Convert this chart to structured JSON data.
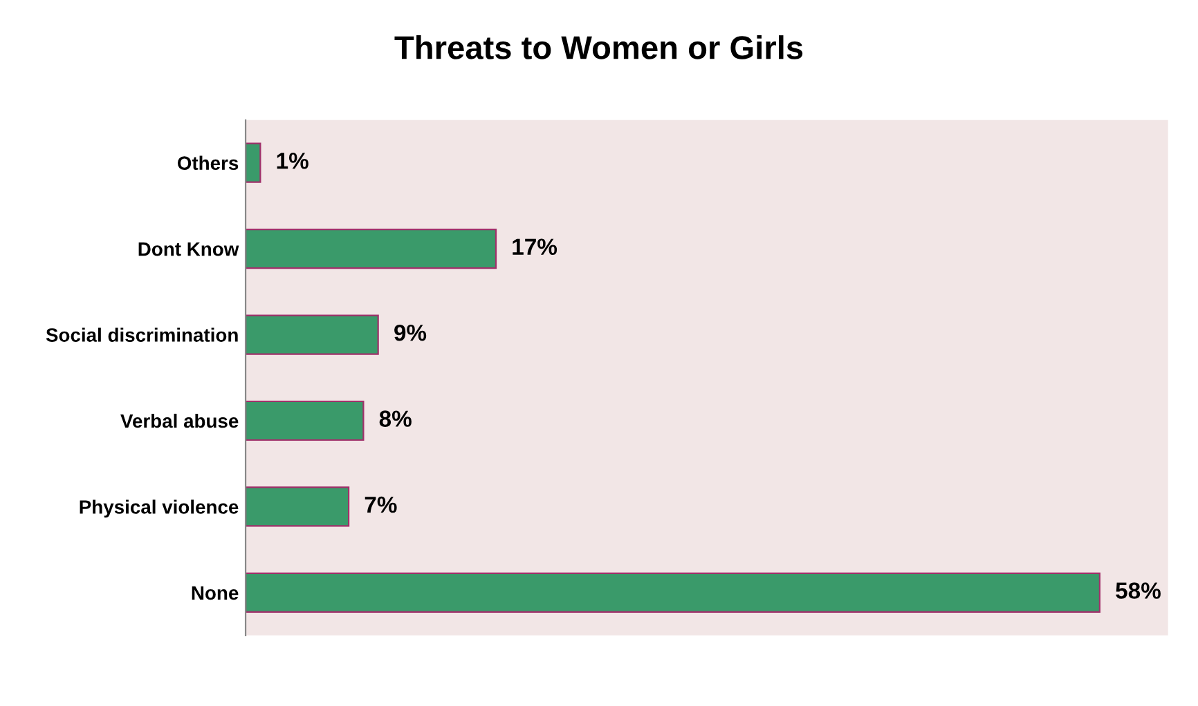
{
  "chart_data": {
    "type": "bar",
    "title": "Threats to Women or Girls",
    "orientation": "horizontal",
    "categories": [
      "Others",
      "Dont Know",
      "Social discrimination",
      "Verbal abuse",
      "Physical violence",
      "None"
    ],
    "values": [
      1,
      17,
      9,
      8,
      7,
      58
    ],
    "value_labels": [
      "1%",
      "17%",
      "9%",
      "8%",
      "7%",
      "58%"
    ],
    "color": "#3a9a6a",
    "grid": false,
    "legend": false
  }
}
